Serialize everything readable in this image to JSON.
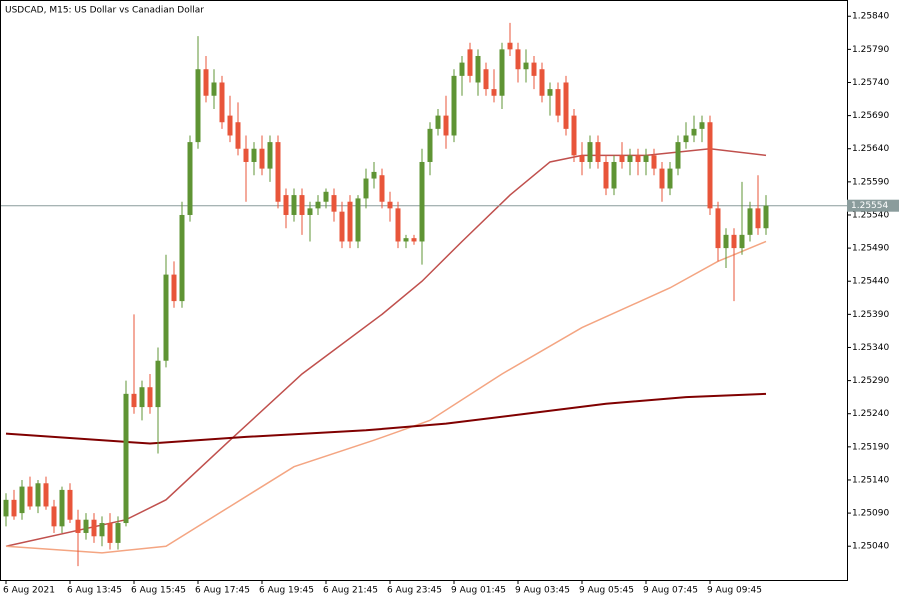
{
  "chart_data": {
    "type": "candlestick",
    "title": "USDCAD, M15:  US Dollar vs Canadian Dollar",
    "up_color": "#5f9434",
    "down_color": "#e8553a",
    "current_price": 1.25554,
    "current_price_color": "#8a9c9c",
    "ylim": [
      1.24989,
      1.25863
    ],
    "yticks": [
      {
        "value": 1.2584,
        "label": "1.25840"
      },
      {
        "value": 1.2579,
        "label": "1.25790"
      },
      {
        "value": 1.2574,
        "label": "1.25740"
      },
      {
        "value": 1.2569,
        "label": "1.25690"
      },
      {
        "value": 1.2564,
        "label": "1.25640"
      },
      {
        "value": 1.2559,
        "label": "1.25590"
      },
      {
        "value": 1.2554,
        "label": "1.25540"
      },
      {
        "value": 1.2549,
        "label": "1.25490"
      },
      {
        "value": 1.2544,
        "label": "1.25440"
      },
      {
        "value": 1.2539,
        "label": "1.25390"
      },
      {
        "value": 1.2534,
        "label": "1.25340"
      },
      {
        "value": 1.2529,
        "label": "1.25290"
      },
      {
        "value": 1.2524,
        "label": "1.25240"
      },
      {
        "value": 1.2519,
        "label": "1.25190"
      },
      {
        "value": 1.2514,
        "label": "1.25140"
      },
      {
        "value": 1.2509,
        "label": "1.25090"
      },
      {
        "value": 1.2504,
        "label": "1.25040"
      }
    ],
    "categories": [
      "6 Aug 2021",
      null,
      null,
      null,
      null,
      null,
      null,
      null,
      "6 Aug 13:45",
      null,
      null,
      null,
      null,
      null,
      null,
      null,
      "6 Aug 15:45",
      null,
      null,
      null,
      null,
      null,
      null,
      null,
      "6 Aug 17:45",
      null,
      null,
      null,
      null,
      null,
      null,
      null,
      "6 Aug 19:45",
      null,
      null,
      null,
      null,
      null,
      null,
      null,
      "6 Aug 21:45",
      null,
      null,
      null,
      null,
      null,
      null,
      null,
      "6 Aug 23:45",
      null,
      null,
      null,
      null,
      null,
      null,
      null,
      "9 Aug 01:45",
      null,
      null,
      null,
      null,
      null,
      null,
      null,
      "9 Aug 03:45",
      null,
      null,
      null,
      null,
      null,
      null,
      null,
      "9 Aug 05:45",
      null,
      null,
      null,
      null,
      null,
      null,
      null,
      "9 Aug 07:45",
      null,
      null,
      null,
      null,
      null,
      null,
      null,
      "9 Aug 09:45",
      null,
      null,
      null,
      null,
      null,
      null,
      null
    ],
    "ohlc": [
      [
        1.25085,
        1.2512,
        1.2507,
        1.2511
      ],
      [
        1.2511,
        1.25125,
        1.2508,
        1.25085
      ],
      [
        1.2509,
        1.2514,
        1.2508,
        1.2513
      ],
      [
        1.2513,
        1.25145,
        1.25095,
        1.251
      ],
      [
        1.251,
        1.2514,
        1.2509,
        1.25135
      ],
      [
        1.25135,
        1.25145,
        1.25095,
        1.251
      ],
      [
        1.251,
        1.2511,
        1.2506,
        1.2507
      ],
      [
        1.2507,
        1.2513,
        1.2506,
        1.25125
      ],
      [
        1.25125,
        1.25135,
        1.25075,
        1.2508
      ],
      [
        1.2508,
        1.25095,
        1.2501,
        1.2506
      ],
      [
        1.2506,
        1.2509,
        1.2505,
        1.2508
      ],
      [
        1.2508,
        1.2509,
        1.25045,
        1.25055
      ],
      [
        1.25055,
        1.25085,
        1.2504,
        1.25075
      ],
      [
        1.25075,
        1.2509,
        1.25035,
        1.25045
      ],
      [
        1.25045,
        1.25085,
        1.25035,
        1.25075
      ],
      [
        1.25075,
        1.2529,
        1.2507,
        1.2527
      ],
      [
        1.2527,
        1.2539,
        1.2524,
        1.2525
      ],
      [
        1.2525,
        1.2529,
        1.2523,
        1.2528
      ],
      [
        1.2528,
        1.253,
        1.2524,
        1.2525
      ],
      [
        1.2525,
        1.2534,
        1.2518,
        1.2532
      ],
      [
        1.2532,
        1.2548,
        1.2531,
        1.2545
      ],
      [
        1.2545,
        1.2547,
        1.254,
        1.2541
      ],
      [
        1.2541,
        1.2556,
        1.254,
        1.2554
      ],
      [
        1.2554,
        1.2566,
        1.2553,
        1.2565
      ],
      [
        1.2565,
        1.2581,
        1.2564,
        1.2576
      ],
      [
        1.2576,
        1.2578,
        1.2571,
        1.2572
      ],
      [
        1.2572,
        1.2576,
        1.257,
        1.2574
      ],
      [
        1.2574,
        1.2575,
        1.2567,
        1.2568
      ],
      [
        1.2569,
        1.2572,
        1.2565,
        1.2566
      ],
      [
        1.2568,
        1.2571,
        1.2563,
        1.2564
      ],
      [
        1.2564,
        1.2566,
        1.2556,
        1.2562
      ],
      [
        1.2562,
        1.2565,
        1.256,
        1.2564
      ],
      [
        1.2564,
        1.2566,
        1.256,
        1.2561
      ],
      [
        1.2561,
        1.2566,
        1.2559,
        1.2565
      ],
      [
        1.2565,
        1.2566,
        1.2555,
        1.2556
      ],
      [
        1.2557,
        1.2558,
        1.2552,
        1.2554
      ],
      [
        1.2554,
        1.2558,
        1.2553,
        1.2557
      ],
      [
        1.2557,
        1.2558,
        1.2551,
        1.2554
      ],
      [
        1.2554,
        1.2556,
        1.255,
        1.2555
      ],
      [
        1.2555,
        1.2557,
        1.2554,
        1.2556
      ],
      [
        1.2556,
        1.2558,
        1.2555,
        1.25575
      ],
      [
        1.2557,
        1.2558,
        1.2553,
        1.25545
      ],
      [
        1.25545,
        1.2556,
        1.2549,
        1.255
      ],
      [
        1.2556,
        1.2557,
        1.2549,
        1.255
      ],
      [
        1.255,
        1.2557,
        1.2549,
        1.25565
      ],
      [
        1.25565,
        1.2561,
        1.2555,
        1.25595
      ],
      [
        1.25595,
        1.2562,
        1.2558,
        1.25605
      ],
      [
        1.256,
        1.2561,
        1.2555,
        1.2556
      ],
      [
        1.2556,
        1.25575,
        1.2553,
        1.2555
      ],
      [
        1.2555,
        1.2556,
        1.2549,
        1.255
      ],
      [
        1.255,
        1.2551,
        1.2549,
        1.25505
      ],
      [
        1.25505,
        1.2551,
        1.25495,
        1.255
      ],
      [
        1.255,
        1.2564,
        1.25465,
        1.2562
      ],
      [
        1.2562,
        1.2568,
        1.256,
        1.2567
      ],
      [
        1.2567,
        1.257,
        1.2566,
        1.2569
      ],
      [
        1.2569,
        1.2572,
        1.2564,
        1.2566
      ],
      [
        1.2566,
        1.2576,
        1.2565,
        1.2575
      ],
      [
        1.2575,
        1.2578,
        1.2572,
        1.2577
      ],
      [
        1.2579,
        1.258,
        1.2574,
        1.2575
      ],
      [
        1.2574,
        1.2579,
        1.2572,
        1.2578
      ],
      [
        1.2576,
        1.2577,
        1.2572,
        1.2573
      ],
      [
        1.2573,
        1.2576,
        1.2571,
        1.2572
      ],
      [
        1.2572,
        1.258,
        1.257,
        1.2579
      ],
      [
        1.258,
        1.2583,
        1.2578,
        1.2579
      ],
      [
        1.2579,
        1.258,
        1.2574,
        1.2576
      ],
      [
        1.2576,
        1.2579,
        1.2574,
        1.2577
      ],
      [
        1.2577,
        1.2578,
        1.2573,
        1.2575
      ],
      [
        1.2576,
        1.2577,
        1.2571,
        1.2572
      ],
      [
        1.2572,
        1.2574,
        1.2569,
        1.2573
      ],
      [
        1.2573,
        1.2574,
        1.2568,
        1.2569
      ],
      [
        1.2574,
        1.2575,
        1.2566,
        1.2567
      ],
      [
        1.2569,
        1.257,
        1.2562,
        1.2563
      ],
      [
        1.2563,
        1.2565,
        1.256,
        1.2562
      ],
      [
        1.2562,
        1.2566,
        1.2561,
        1.2565
      ],
      [
        1.2565,
        1.2566,
        1.2561,
        1.2562
      ],
      [
        1.2562,
        1.2563,
        1.2557,
        1.2558
      ],
      [
        1.2558,
        1.2563,
        1.2557,
        1.2562
      ],
      [
        1.2563,
        1.2565,
        1.2561,
        1.2562
      ],
      [
        1.2562,
        1.2564,
        1.256,
        1.2563
      ],
      [
        1.2563,
        1.2564,
        1.256,
        1.2562
      ],
      [
        1.2562,
        1.2564,
        1.256,
        1.2563
      ],
      [
        1.2563,
        1.2564,
        1.256,
        1.2561
      ],
      [
        1.2561,
        1.2562,
        1.2556,
        1.2558
      ],
      [
        1.2558,
        1.2562,
        1.2557,
        1.2561
      ],
      [
        1.2561,
        1.2566,
        1.256,
        1.2565
      ],
      [
        1.2565,
        1.2568,
        1.2564,
        1.2566
      ],
      [
        1.2566,
        1.2569,
        1.2565,
        1.2567
      ],
      [
        1.2567,
        1.2569,
        1.2565,
        1.2568
      ],
      [
        1.2568,
        1.2569,
        1.2554,
        1.2555
      ],
      [
        1.2555,
        1.2556,
        1.2547,
        1.2549
      ],
      [
        1.2549,
        1.2552,
        1.2546,
        1.2551
      ],
      [
        1.2551,
        1.2552,
        1.2541,
        1.2549
      ],
      [
        1.2549,
        1.2559,
        1.2548,
        1.2551
      ],
      [
        1.2551,
        1.2556,
        1.255,
        1.2555
      ],
      [
        1.2555,
        1.256,
        1.2551,
        1.2552
      ],
      [
        1.2552,
        1.2557,
        1.2551,
        1.25554
      ]
    ],
    "series": [
      {
        "color": "#c0504d",
        "x": [
          0,
          15,
          20,
          28,
          37,
          47,
          52,
          57,
          63,
          68,
          72,
          80,
          88,
          95
        ],
        "values": [
          1.2504,
          1.2508,
          1.2511,
          1.252,
          1.253,
          1.2539,
          1.2544,
          1.255,
          1.2557,
          1.2562,
          1.2563,
          1.2563,
          1.2564,
          1.2563
        ]
      },
      {
        "color": "#f4a582",
        "x": [
          0,
          12,
          20,
          28,
          36,
          46,
          53,
          62,
          72,
          83,
          89,
          95
        ],
        "values": [
          1.2504,
          1.2503,
          1.2504,
          1.251,
          1.2516,
          1.252,
          1.2523,
          1.253,
          1.2537,
          1.2543,
          1.2547,
          1.255
        ]
      },
      {
        "color": "#800000",
        "x": [
          0,
          18,
          30,
          45,
          55,
          65,
          75,
          85,
          95
        ],
        "values": [
          1.2521,
          1.25195,
          1.25205,
          1.25215,
          1.25225,
          1.2524,
          1.25255,
          1.25265,
          1.2527
        ]
      }
    ]
  }
}
